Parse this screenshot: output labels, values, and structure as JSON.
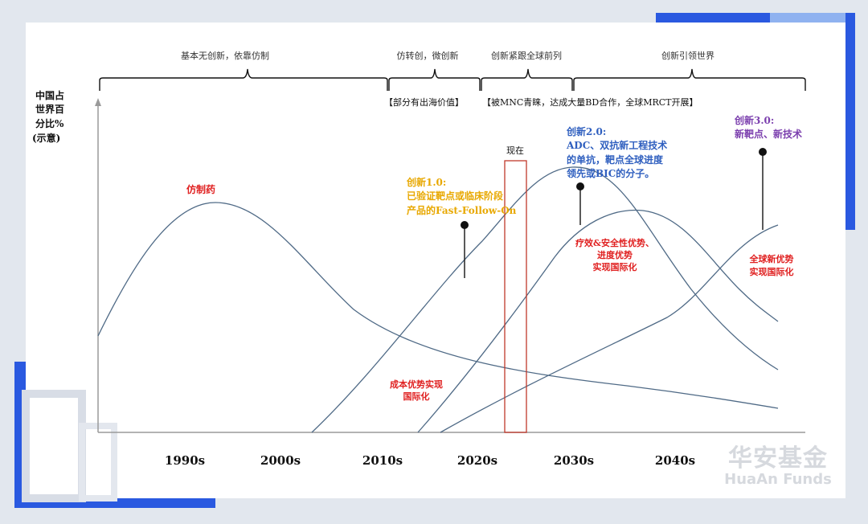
{
  "phases": [
    {
      "label": "基本无创新，依靠仿制"
    },
    {
      "label": "仿转创，微创新"
    },
    {
      "label": "创新紧跟全球前列"
    },
    {
      "label": "创新引领世界"
    }
  ],
  "phase_notes": {
    "note1": "【部分有出海价值】",
    "note2": "【被MNC青睐，达成大量BD合作，全球MRCT开展】"
  },
  "y_axis_label": [
    "中国占",
    "世界百",
    "分比%",
    "(示意)"
  ],
  "x_axis_ticks": [
    "1990s",
    "2000s",
    "2010s",
    "2020s",
    "2030s",
    "2040s"
  ],
  "now_label": "现在",
  "annotations": {
    "generic": "仿制药",
    "cost_adv": [
      "成本优势实现",
      "国际化"
    ],
    "innov1": [
      "创新1.0:",
      "已验证靶点或临床阶段",
      "产品的Fast-Follow-On"
    ],
    "innov2": [
      "创新2.0:",
      "ADC、双抗新工程技术",
      "的单抗，靶点全球进度",
      "领先或BIC的分子。"
    ],
    "innov2_adv": [
      "疗效&安全性优势、",
      "进度优势",
      "实现国际化"
    ],
    "innov3": [
      "创新3.0:",
      "新靶点、新技术"
    ],
    "innov3_adv": [
      "全球新优势",
      "实现国际化"
    ]
  },
  "colors": {
    "red": "#e02020",
    "yellow": "#e8a800",
    "blue": "#2f5fbf",
    "purple": "#7b3fae",
    "curve": "#4f6a86",
    "frame_accent": "#2a59e0"
  },
  "logo": {
    "cn": "华安基金",
    "en": "HuaAn Funds"
  }
}
